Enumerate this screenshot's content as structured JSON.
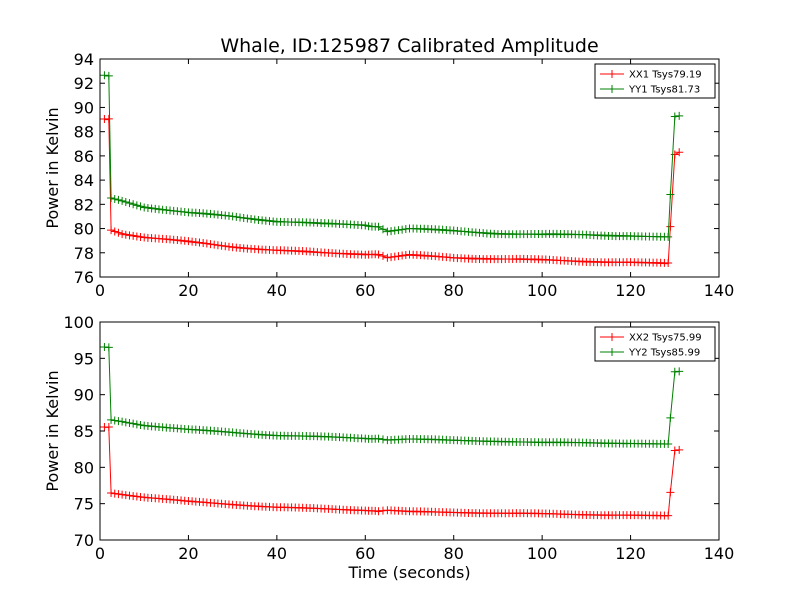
{
  "chart_data": [
    {
      "type": "line",
      "title": "Whale, ID:125987 Calibrated Amplitude",
      "xlabel": "",
      "ylabel": "Power in Kelvin",
      "xlim": [
        0,
        140
      ],
      "ylim": [
        76,
        94
      ],
      "xticks": [
        "0",
        "20",
        "40",
        "60",
        "80",
        "100",
        "120",
        "140"
      ],
      "yticks": [
        "76",
        "78",
        "80",
        "82",
        "84",
        "86",
        "88",
        "90",
        "92",
        "94"
      ],
      "legend_position": "top-right",
      "grid": false,
      "series": [
        {
          "name": "XX1 Tsys79.19",
          "color": "#ff0000",
          "x": [
            1,
            2,
            2.5,
            5,
            10,
            20,
            30,
            40,
            50,
            60,
            63,
            65,
            70,
            80,
            90,
            100,
            110,
            120,
            128.5,
            129,
            130,
            131
          ],
          "y": [
            89.0,
            89.0,
            79.9,
            79.6,
            79.3,
            78.9,
            78.5,
            78.2,
            78.0,
            77.9,
            77.8,
            77.6,
            77.8,
            77.6,
            77.5,
            77.4,
            77.3,
            77.2,
            77.1,
            80.2,
            86.1,
            86.3
          ]
        },
        {
          "name": "YY1 Tsys81.73",
          "color": "#008000",
          "x": [
            1,
            2,
            2.5,
            5,
            10,
            20,
            30,
            40,
            50,
            60,
            63,
            65,
            70,
            80,
            90,
            100,
            110,
            120,
            128.5,
            129,
            130,
            131
          ],
          "y": [
            92.6,
            92.6,
            82.5,
            82.3,
            81.8,
            81.3,
            81.0,
            80.6,
            80.4,
            80.3,
            80.1,
            79.8,
            80.0,
            79.8,
            79.6,
            79.5,
            79.5,
            79.4,
            79.3,
            82.8,
            89.2,
            89.3
          ]
        }
      ]
    },
    {
      "type": "line",
      "title": "",
      "xlabel": "Time (seconds)",
      "ylabel": "Power in Kelvin",
      "xlim": [
        0,
        140
      ],
      "ylim": [
        70,
        100
      ],
      "xticks": [
        "0",
        "20",
        "40",
        "60",
        "80",
        "100",
        "120",
        "140"
      ],
      "yticks": [
        "70",
        "75",
        "80",
        "85",
        "90",
        "95",
        "100"
      ],
      "legend_position": "top-right",
      "grid": false,
      "series": [
        {
          "name": "XX2 Tsys75.99",
          "color": "#ff0000",
          "x": [
            1,
            2,
            2.5,
            5,
            10,
            20,
            30,
            40,
            50,
            60,
            63,
            65,
            70,
            80,
            90,
            100,
            110,
            120,
            128.5,
            129,
            130,
            131
          ],
          "y": [
            85.5,
            85.5,
            76.5,
            76.3,
            75.9,
            75.3,
            74.9,
            74.5,
            74.3,
            74.1,
            73.9,
            74.1,
            73.9,
            73.8,
            73.7,
            73.6,
            73.5,
            73.4,
            73.3,
            76.6,
            82.3,
            82.4
          ]
        },
        {
          "name": "YY2 Tsys85.99",
          "color": "#008000",
          "x": [
            1,
            2,
            2.5,
            5,
            10,
            20,
            30,
            40,
            50,
            60,
            63,
            65,
            70,
            80,
            90,
            100,
            110,
            120,
            128.5,
            129,
            130,
            131
          ],
          "y": [
            96.5,
            96.5,
            86.5,
            86.3,
            85.8,
            85.2,
            84.8,
            84.4,
            84.2,
            84.0,
            83.9,
            83.8,
            83.9,
            83.7,
            83.6,
            83.4,
            83.4,
            83.3,
            83.2,
            86.8,
            93.1,
            93.2
          ]
        }
      ]
    }
  ]
}
